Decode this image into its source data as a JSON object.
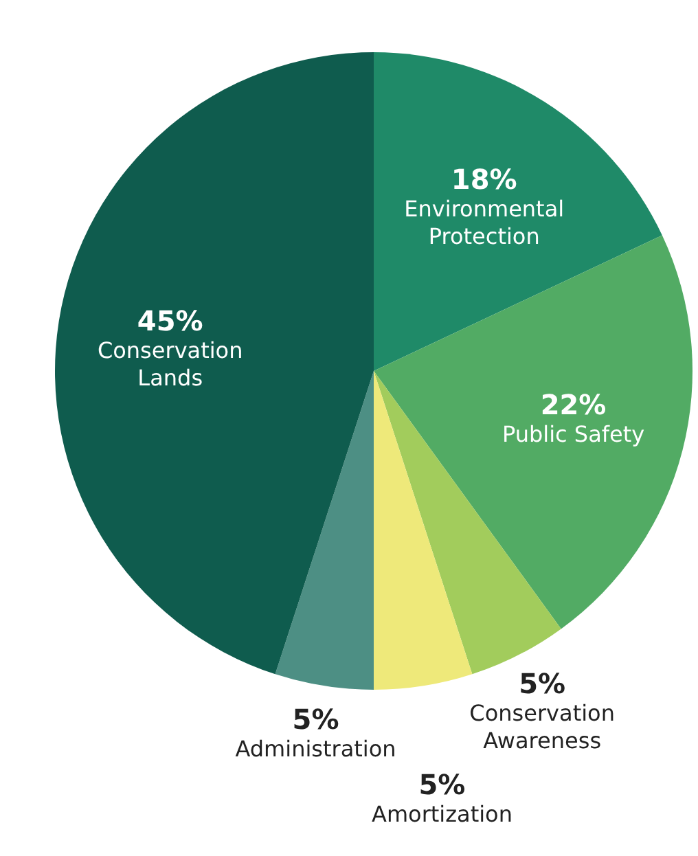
{
  "chart_data": {
    "type": "pie",
    "categories": [
      "Environmental Protection",
      "Public Safety",
      "Conservation Awareness",
      "Amortization",
      "Administration",
      "Conservation Lands"
    ],
    "values": [
      18,
      22,
      5,
      5,
      5,
      45
    ],
    "value_labels": [
      "18%",
      "22%",
      "5%",
      "5%",
      "5%",
      "45%"
    ],
    "colors": [
      "#1f8a68",
      "#52ab64",
      "#a2cc5c",
      "#eee97a",
      "#4d8f84",
      "#0f5c4e"
    ]
  }
}
